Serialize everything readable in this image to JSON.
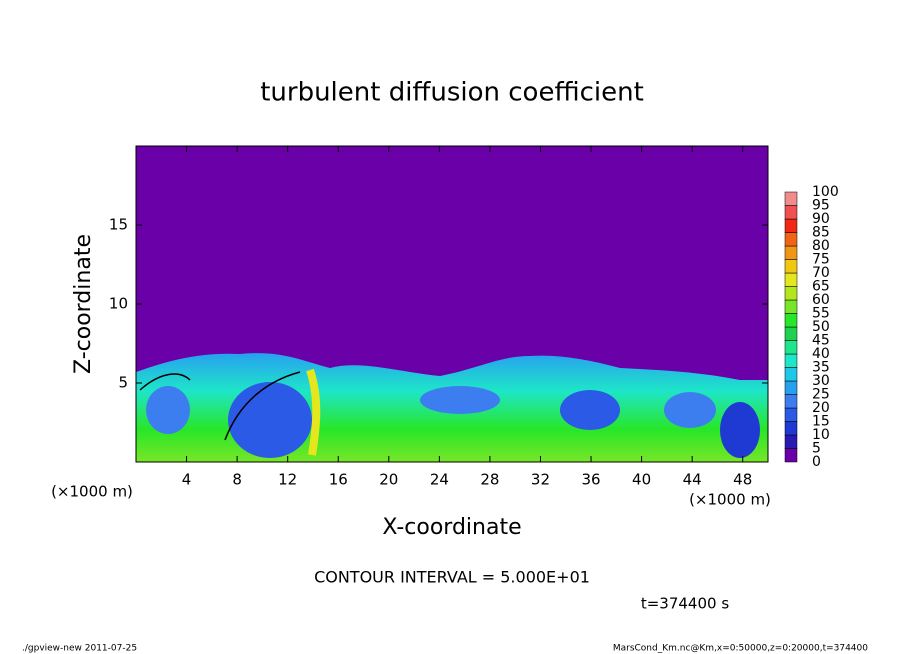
{
  "chart_data": {
    "type": "heatmap",
    "title": "turbulent diffusion coefficient",
    "x_label": "X-coordinate",
    "y_label": "Z-coordinate",
    "x_unit": "(×1000 m)",
    "y_unit": "(×1000 m)",
    "xlim": [
      0,
      50
    ],
    "ylim": [
      0,
      20
    ],
    "xticks": [
      4,
      8,
      12,
      16,
      20,
      24,
      28,
      32,
      36,
      40,
      44,
      48
    ],
    "yticks": [
      5,
      10,
      15
    ],
    "colorbar": {
      "levels": [
        0,
        5,
        10,
        15,
        20,
        25,
        30,
        35,
        40,
        45,
        50,
        55,
        60,
        65,
        70,
        75,
        80,
        85,
        90,
        95,
        100
      ],
      "colors": [
        "#6a00a8",
        "#2a1ab4",
        "#1e3ad2",
        "#2a5ae6",
        "#3c7ef0",
        "#28a0f0",
        "#1ec8e6",
        "#1ee6c8",
        "#1ee68c",
        "#1ed250",
        "#28e628",
        "#78e628",
        "#b4e61e",
        "#e6e61e",
        "#f0c814",
        "#f09614",
        "#f06414",
        "#f02814",
        "#f05050",
        "#f08c8c"
      ]
    },
    "contour_note": "CONTOUR INTERVAL = 5.000E+01",
    "time_label": "t=374400 s",
    "footer_left": "./gpview-new  2011-07-25",
    "footer_right": "MarsCond_Km.nc@Km,x=0:50000,z=0:20000,t=374400"
  }
}
